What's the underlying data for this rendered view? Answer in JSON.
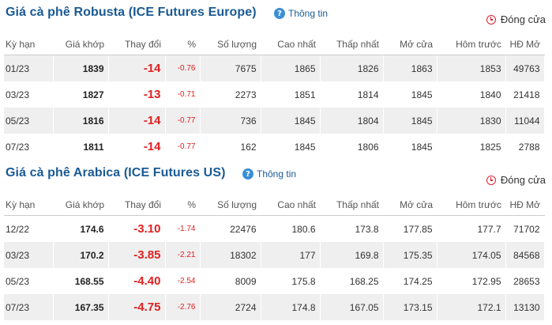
{
  "robusta": {
    "title": "Giá cà phê Robusta (ICE Futures Europe)",
    "info_label": "Thông tin",
    "close_label": "Đóng cửa",
    "headers": [
      "Kỳ hạn",
      "Giá khớp",
      "Thay đổi",
      "%",
      "Số lượng",
      "Cao nhất",
      "Thấp nhất",
      "Mở cửa",
      "Hôm trước",
      "HĐ Mở"
    ],
    "rows": [
      [
        "01/23",
        "1839",
        "-14",
        "-0.76",
        "7675",
        "1865",
        "1826",
        "1863",
        "1853",
        "49763"
      ],
      [
        "03/23",
        "1827",
        "-13",
        "-0.71",
        "2273",
        "1851",
        "1814",
        "1845",
        "1840",
        "21418"
      ],
      [
        "05/23",
        "1816",
        "-14",
        "-0.77",
        "736",
        "1845",
        "1804",
        "1845",
        "1830",
        "11044"
      ],
      [
        "07/23",
        "1811",
        "-14",
        "-0.77",
        "162",
        "1845",
        "1806",
        "1845",
        "1825",
        "2788"
      ]
    ]
  },
  "arabica": {
    "title": "Giá cà phê Arabica (ICE Futures US)",
    "info_label": "Thông tin",
    "close_label": "Đóng cửa",
    "headers": [
      "Kỳ hạn",
      "Giá khớp",
      "Thay đổi",
      "%",
      "Số lượng",
      "Cao nhất",
      "Thấp nhất",
      "Mở cửa",
      "Hôm trước",
      "HĐ Mở"
    ],
    "rows": [
      [
        "12/22",
        "174.6",
        "-3.10",
        "-1.74",
        "22476",
        "180.6",
        "173.8",
        "177.85",
        "177.7",
        "71702"
      ],
      [
        "03/23",
        "170.2",
        "-3.85",
        "-2.21",
        "18302",
        "177",
        "169.8",
        "175.35",
        "174.05",
        "84568"
      ],
      [
        "05/23",
        "168.55",
        "-4.40",
        "-2.54",
        "8009",
        "175.8",
        "168.25",
        "174.25",
        "172.95",
        "28653"
      ],
      [
        "07/23",
        "167.35",
        "-4.75",
        "-2.76",
        "2724",
        "174.8",
        "167.05",
        "173.15",
        "172.1",
        "13130"
      ]
    ]
  },
  "colors": {
    "title": "#1a5a94",
    "negative": "#e02020",
    "row_stripe": "#efefef"
  },
  "icons": {
    "info": "info-circle-icon",
    "close": "clock-icon"
  }
}
